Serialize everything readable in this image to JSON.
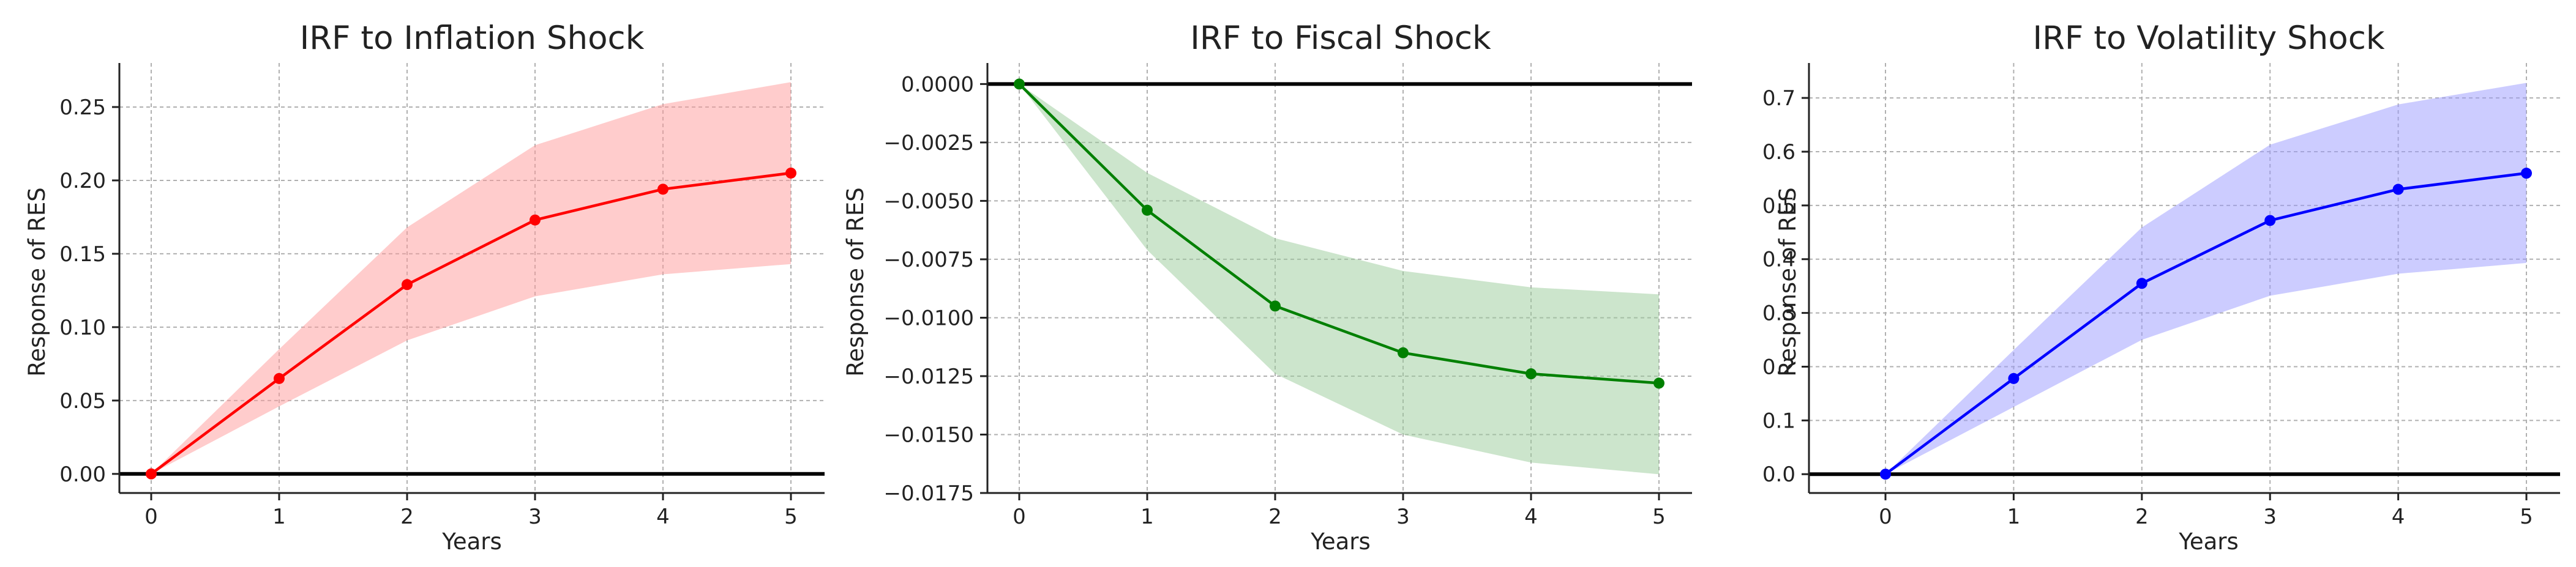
{
  "chart_data": [
    {
      "type": "line",
      "title": "IRF to Inflation Shock",
      "xlabel": "Years",
      "ylabel": "Response of RES",
      "x": [
        0,
        1,
        2,
        3,
        4,
        5
      ],
      "xticks": [
        "0",
        "1",
        "2",
        "3",
        "4",
        "5"
      ],
      "ylim": [
        -0.013,
        0.28
      ],
      "yticks": [
        "0.00",
        "0.05",
        "0.10",
        "0.15",
        "0.20",
        "0.25"
      ],
      "ytick_values": [
        0,
        0.05,
        0.1,
        0.15,
        0.2,
        0.25
      ],
      "series": [
        {
          "values": [
            0.0,
            0.065,
            0.129,
            0.173,
            0.194,
            0.205
          ],
          "lower": [
            0.0,
            0.046,
            0.091,
            0.121,
            0.136,
            0.143
          ],
          "upper": [
            0.0,
            0.085,
            0.168,
            0.224,
            0.252,
            0.267
          ],
          "color": "#ff0000",
          "band_color": "#ff9999"
        }
      ],
      "grid": true,
      "zero_line": true
    },
    {
      "type": "line",
      "title": "IRF to Fiscal Shock",
      "xlabel": "Years",
      "ylabel": "Response of RES",
      "x": [
        0,
        1,
        2,
        3,
        4,
        5
      ],
      "xticks": [
        "0",
        "1",
        "2",
        "3",
        "4",
        "5"
      ],
      "ylim": [
        -0.0175,
        0.0009
      ],
      "yticks": [
        "0.0000",
        "−0.0025",
        "−0.0050",
        "−0.0075",
        "−0.0100",
        "−0.0125",
        "−0.0150",
        "−0.0175"
      ],
      "ytick_values": [
        0,
        -0.0025,
        -0.005,
        -0.0075,
        -0.01,
        -0.0125,
        -0.015,
        -0.0175
      ],
      "series": [
        {
          "values": [
            0.0,
            -0.0054,
            -0.0095,
            -0.0115,
            -0.0124,
            -0.0128
          ],
          "lower": [
            0.0,
            -0.0071,
            -0.0124,
            -0.015,
            -0.0162,
            -0.0167
          ],
          "upper": [
            0.0,
            -0.0038,
            -0.0066,
            -0.008,
            -0.0087,
            -0.009
          ],
          "color": "#008000",
          "band_color": "#99cc99"
        }
      ],
      "grid": true,
      "zero_line": true
    },
    {
      "type": "line",
      "title": "IRF to Volatility Shock",
      "xlabel": "Years",
      "ylabel": "Response of RES",
      "x": [
        0,
        1,
        2,
        3,
        4,
        5
      ],
      "xticks": [
        "0",
        "1",
        "2",
        "3",
        "4",
        "5"
      ],
      "ylim": [
        -0.035,
        0.765
      ],
      "yticks": [
        "0.0",
        "0.1",
        "0.2",
        "0.3",
        "0.4",
        "0.5",
        "0.6",
        "0.7"
      ],
      "ytick_values": [
        0,
        0.1,
        0.2,
        0.3,
        0.4,
        0.5,
        0.6,
        0.7
      ],
      "series": [
        {
          "values": [
            0.0,
            0.178,
            0.355,
            0.472,
            0.53,
            0.56
          ],
          "lower": [
            0.0,
            0.125,
            0.25,
            0.332,
            0.373,
            0.393
          ],
          "upper": [
            0.0,
            0.231,
            0.459,
            0.613,
            0.688,
            0.728
          ],
          "color": "#0000ff",
          "band_color": "#9999ff"
        }
      ],
      "grid": true,
      "zero_line": true
    }
  ]
}
